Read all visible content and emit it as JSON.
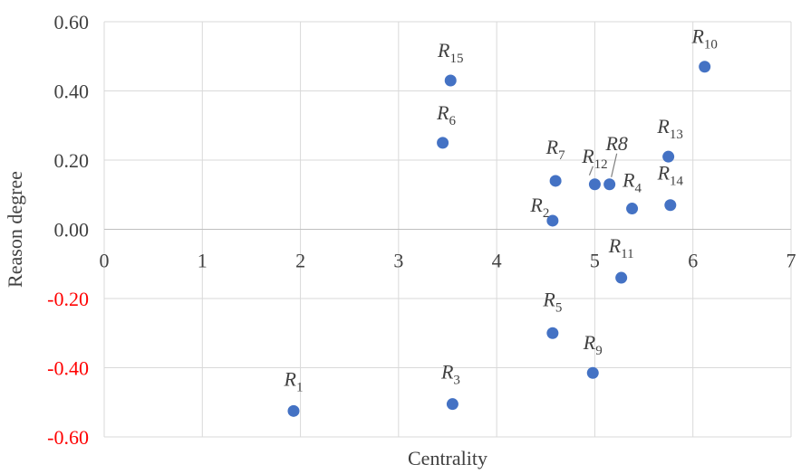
{
  "chart_data": {
    "type": "scatter",
    "title": "",
    "xlabel": "Centrality",
    "ylabel": "Reason degree",
    "xlim": [
      0,
      7
    ],
    "ylim": [
      -0.6,
      0.6
    ],
    "x_ticks": [
      "0",
      "1",
      "2",
      "3",
      "4",
      "5",
      "6",
      "7"
    ],
    "y_ticks": [
      "0.60",
      "0.40",
      "0.20",
      "0.00",
      "-0.20",
      "-0.40",
      "-0.60"
    ],
    "y_tick_values": [
      0.6,
      0.4,
      0.2,
      0.0,
      -0.2,
      -0.4,
      -0.6
    ],
    "negative_tick_color": "#ff0000",
    "positive_tick_color": "#404040",
    "point_color": "#4472c4",
    "grid": true,
    "points": [
      {
        "base": "R",
        "sub": "1",
        "x": 1.93,
        "y": -0.525
      },
      {
        "base": "R",
        "sub": "2",
        "x": 4.57,
        "y": 0.025
      },
      {
        "base": "R",
        "sub": "3",
        "x": 3.55,
        "y": -0.505
      },
      {
        "base": "R",
        "sub": "4",
        "x": 5.38,
        "y": 0.06
      },
      {
        "base": "R",
        "sub": "5",
        "x": 4.57,
        "y": -0.3
      },
      {
        "base": "R",
        "sub": "6",
        "x": 3.45,
        "y": 0.25
      },
      {
        "base": "R",
        "sub": "7",
        "x": 4.6,
        "y": 0.14
      },
      {
        "base": "R8",
        "sub": "",
        "x": 5.15,
        "y": 0.13
      },
      {
        "base": "R",
        "sub": "9",
        "x": 4.98,
        "y": -0.415
      },
      {
        "base": "R",
        "sub": "10",
        "x": 6.12,
        "y": 0.47
      },
      {
        "base": "R",
        "sub": "11",
        "x": 5.27,
        "y": -0.14
      },
      {
        "base": "R",
        "sub": "12",
        "x": 5.0,
        "y": 0.13
      },
      {
        "base": "R",
        "sub": "13",
        "x": 5.75,
        "y": 0.21
      },
      {
        "base": "R",
        "sub": "14",
        "x": 5.77,
        "y": 0.07
      },
      {
        "base": "R",
        "sub": "15",
        "x": 3.53,
        "y": 0.43
      }
    ]
  }
}
